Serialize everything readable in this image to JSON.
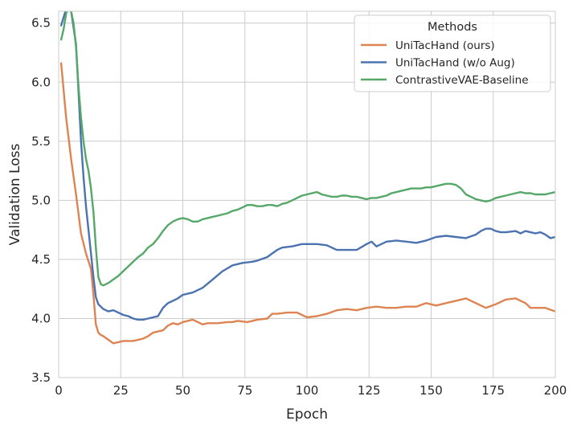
{
  "chart_data": {
    "type": "line",
    "xlabel": "Epoch",
    "ylabel": "Validation Loss",
    "xlim": [
      0,
      200
    ],
    "ylim": [
      3.5,
      6.6
    ],
    "xticks": [
      0,
      25,
      50,
      75,
      100,
      125,
      150,
      175,
      200
    ],
    "yticks": [
      3.5,
      4.0,
      4.5,
      5.0,
      5.5,
      6.0,
      6.5
    ],
    "grid": true,
    "legend": {
      "title": "Methods",
      "placement": "top-right"
    },
    "series": [
      {
        "name": "UniTacHand (ours)",
        "color": "#dd8452",
        "x": [
          1,
          3,
          5,
          7,
          9,
          11,
          13,
          14,
          15,
          16,
          17,
          18,
          20,
          22,
          24,
          26,
          30,
          34,
          36,
          38,
          40,
          42,
          44,
          46,
          48,
          50,
          54,
          58,
          60,
          64,
          68,
          70,
          72,
          76,
          80,
          84,
          86,
          88,
          92,
          96,
          100,
          104,
          108,
          112,
          116,
          120,
          124,
          128,
          132,
          136,
          140,
          144,
          148,
          152,
          156,
          160,
          164,
          168,
          172,
          176,
          180,
          184,
          188,
          190,
          192,
          196,
          200
        ],
        "y": [
          6.16,
          5.7,
          5.35,
          5.05,
          4.72,
          4.55,
          4.42,
          4.2,
          3.95,
          3.88,
          3.86,
          3.85,
          3.82,
          3.79,
          3.8,
          3.81,
          3.81,
          3.83,
          3.85,
          3.88,
          3.89,
          3.9,
          3.94,
          3.96,
          3.95,
          3.97,
          3.99,
          3.95,
          3.96,
          3.96,
          3.97,
          3.97,
          3.98,
          3.97,
          3.99,
          4.0,
          4.04,
          4.04,
          4.05,
          4.05,
          4.01,
          4.02,
          4.04,
          4.07,
          4.08,
          4.07,
          4.09,
          4.1,
          4.09,
          4.09,
          4.1,
          4.1,
          4.13,
          4.11,
          4.13,
          4.15,
          4.17,
          4.13,
          4.09,
          4.12,
          4.16,
          4.17,
          4.13,
          4.09,
          4.09,
          4.09,
          4.06
        ]
      },
      {
        "name": "UniTacHand (w/o Aug)",
        "color": "#4c72b0",
        "x": [
          1,
          3,
          5,
          7,
          8,
          9,
          10,
          11,
          12,
          13,
          14,
          15,
          16,
          17,
          18,
          20,
          22,
          24,
          26,
          28,
          30,
          32,
          34,
          36,
          38,
          40,
          42,
          44,
          46,
          48,
          50,
          54,
          58,
          62,
          66,
          70,
          74,
          78,
          80,
          84,
          86,
          88,
          90,
          94,
          98,
          100,
          104,
          108,
          110,
          112,
          116,
          120,
          124,
          126,
          128,
          132,
          136,
          140,
          144,
          148,
          152,
          156,
          160,
          164,
          168,
          170,
          172,
          174,
          176,
          178,
          180,
          184,
          186,
          188,
          190,
          192,
          194,
          196,
          198,
          200
        ],
        "y": [
          6.48,
          6.62,
          6.6,
          6.32,
          5.92,
          5.5,
          5.2,
          4.95,
          4.75,
          4.55,
          4.35,
          4.18,
          4.12,
          4.1,
          4.08,
          4.06,
          4.07,
          4.05,
          4.03,
          4.02,
          4.0,
          3.99,
          3.99,
          4.0,
          4.01,
          4.02,
          4.09,
          4.13,
          4.15,
          4.17,
          4.2,
          4.22,
          4.26,
          4.33,
          4.4,
          4.45,
          4.47,
          4.48,
          4.49,
          4.52,
          4.55,
          4.58,
          4.6,
          4.61,
          4.63,
          4.63,
          4.63,
          4.62,
          4.6,
          4.58,
          4.58,
          4.58,
          4.63,
          4.65,
          4.61,
          4.65,
          4.66,
          4.65,
          4.64,
          4.66,
          4.69,
          4.7,
          4.69,
          4.68,
          4.71,
          4.74,
          4.76,
          4.76,
          4.74,
          4.73,
          4.73,
          4.74,
          4.72,
          4.74,
          4.73,
          4.72,
          4.73,
          4.71,
          4.68,
          4.69
        ]
      },
      {
        "name": "ContrastiveVAE-Baseline",
        "color": "#55a868",
        "x": [
          1,
          2,
          3,
          4,
          5,
          6,
          7,
          8,
          9,
          10,
          11,
          12,
          13,
          14,
          15,
          16,
          17,
          18,
          20,
          22,
          24,
          26,
          28,
          30,
          32,
          34,
          36,
          38,
          40,
          42,
          44,
          46,
          48,
          50,
          52,
          54,
          56,
          58,
          60,
          62,
          64,
          66,
          68,
          70,
          72,
          74,
          76,
          78,
          80,
          82,
          84,
          86,
          88,
          90,
          92,
          94,
          96,
          98,
          100,
          102,
          104,
          106,
          108,
          110,
          112,
          114,
          116,
          118,
          120,
          122,
          124,
          126,
          128,
          130,
          132,
          134,
          136,
          138,
          140,
          142,
          144,
          146,
          148,
          150,
          152,
          154,
          156,
          158,
          160,
          162,
          164,
          166,
          168,
          170,
          172,
          174,
          176,
          178,
          180,
          182,
          184,
          186,
          188,
          190,
          192,
          194,
          196,
          198,
          200
        ],
        "y": [
          6.36,
          6.45,
          6.58,
          6.64,
          6.6,
          6.5,
          6.3,
          5.96,
          5.7,
          5.5,
          5.35,
          5.25,
          5.1,
          4.9,
          4.6,
          4.35,
          4.29,
          4.28,
          4.3,
          4.33,
          4.36,
          4.4,
          4.44,
          4.48,
          4.52,
          4.55,
          4.6,
          4.63,
          4.68,
          4.74,
          4.79,
          4.82,
          4.84,
          4.85,
          4.84,
          4.82,
          4.82,
          4.84,
          4.85,
          4.86,
          4.87,
          4.88,
          4.89,
          4.91,
          4.92,
          4.94,
          4.96,
          4.96,
          4.95,
          4.95,
          4.96,
          4.96,
          4.95,
          4.97,
          4.98,
          5.0,
          5.02,
          5.04,
          5.05,
          5.06,
          5.07,
          5.05,
          5.04,
          5.03,
          5.03,
          5.04,
          5.04,
          5.03,
          5.03,
          5.02,
          5.01,
          5.02,
          5.02,
          5.03,
          5.04,
          5.06,
          5.07,
          5.08,
          5.09,
          5.1,
          5.1,
          5.1,
          5.11,
          5.11,
          5.12,
          5.13,
          5.14,
          5.14,
          5.13,
          5.1,
          5.05,
          5.03,
          5.01,
          5.0,
          4.99,
          5.0,
          5.02,
          5.03,
          5.04,
          5.05,
          5.06,
          5.07,
          5.06,
          5.06,
          5.05,
          5.05,
          5.05,
          5.06,
          5.07
        ]
      }
    ]
  }
}
